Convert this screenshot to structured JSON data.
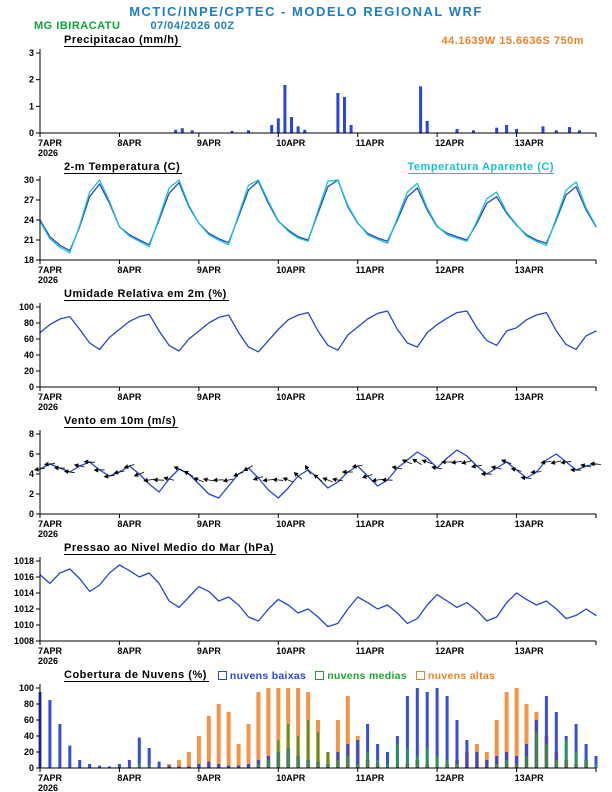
{
  "header": {
    "title": "MCTIC/INPE/CPTEC - MODELO REGIONAL WRF",
    "station": "MG IBIRACATU",
    "run": "07/04/2026 00Z",
    "coords": "44.1639W 15.6636S 750m"
  },
  "colors": {
    "header_blue": "#1d7fc1",
    "green": "#0aa53c",
    "orange": "#ef8228",
    "cyan": "#19c3c9",
    "line_blue": "#2745cf",
    "bar_blue": "#2b46d4",
    "cloud_green": "#1fa62c"
  },
  "x_axis": {
    "t_max": 168,
    "sample_step_hours": 3,
    "ticks": [
      {
        "t": 0,
        "label": "7APR",
        "sub": "2026"
      },
      {
        "t": 24,
        "label": "8APR"
      },
      {
        "t": 48,
        "label": "9APR"
      },
      {
        "t": 72,
        "label": "10APR"
      },
      {
        "t": 96,
        "label": "11APR"
      },
      {
        "t": 120,
        "label": "12APR"
      },
      {
        "t": 144,
        "label": "13APR"
      }
    ]
  },
  "chart_data": [
    {
      "id": "precipitation",
      "type": "bar",
      "title": "Precipitacao (mm/h)",
      "ylim": [
        0,
        3
      ],
      "yticks": [
        0,
        1,
        2,
        3
      ],
      "color": "bar_blue",
      "bars": [
        [
          41,
          0.12
        ],
        [
          43,
          0.18
        ],
        [
          46,
          0.1
        ],
        [
          58,
          0.08
        ],
        [
          63,
          0.1
        ],
        [
          70,
          0.3
        ],
        [
          72,
          0.55
        ],
        [
          74,
          1.8
        ],
        [
          76,
          0.6
        ],
        [
          78,
          0.25
        ],
        [
          80,
          0.12
        ],
        [
          90,
          1.5
        ],
        [
          92,
          1.35
        ],
        [
          94,
          0.3
        ],
        [
          115,
          1.75
        ],
        [
          117,
          0.45
        ],
        [
          126,
          0.15
        ],
        [
          131,
          0.1
        ],
        [
          138,
          0.2
        ],
        [
          141,
          0.3
        ],
        [
          144,
          0.15
        ],
        [
          152,
          0.25
        ],
        [
          156,
          0.1
        ],
        [
          160,
          0.22
        ],
        [
          163,
          0.1
        ]
      ]
    },
    {
      "id": "temperature-2m",
      "type": "line",
      "title": "2-m Temperatura (C)",
      "right_label": "Temperatura Aparente (C)",
      "ylim": [
        18,
        30
      ],
      "yticks": [
        18,
        21,
        24,
        27,
        30
      ],
      "series": [
        {
          "name": "2-m Temperatura (C)",
          "color": "line_blue",
          "values": [
            24,
            21.5,
            20.2,
            19.4,
            23,
            27.5,
            29.4,
            26.5,
            23,
            21.8,
            21,
            20.3,
            24,
            28,
            29.6,
            26,
            23.5,
            22,
            21.2,
            20.6,
            24.5,
            28.5,
            29.8,
            26.5,
            23.8,
            22.5,
            21.5,
            21,
            25,
            29,
            30,
            26,
            23.5,
            22,
            21.3,
            20.8,
            24,
            27.5,
            28.8,
            25.5,
            23,
            22,
            21.5,
            21,
            23.5,
            26.5,
            27.5,
            25,
            23.2,
            21.8,
            21,
            20.5,
            24,
            27.8,
            29,
            25.5,
            23
          ]
        },
        {
          "name": "Temperatura Aparente (C)",
          "color": "cyan",
          "values": [
            23.8,
            21.2,
            19.9,
            19.1,
            23.2,
            28.2,
            30,
            26.8,
            23,
            21.6,
            20.8,
            20,
            24.3,
            28.8,
            30,
            26.2,
            23.5,
            21.8,
            21,
            20.3,
            24.8,
            29.2,
            30,
            26.8,
            23.9,
            22.3,
            21.3,
            20.8,
            25.4,
            29.8,
            30,
            26.2,
            23.6,
            21.8,
            21.1,
            20.5,
            24.3,
            28.2,
            29.5,
            25.8,
            23.1,
            21.8,
            21.3,
            20.8,
            23.8,
            27.2,
            28.2,
            25.2,
            23.3,
            21.6,
            20.8,
            20.2,
            24.3,
            28.5,
            29.7,
            25.8,
            23.1
          ]
        }
      ]
    },
    {
      "id": "relative-humidity",
      "type": "line",
      "title": "Umidade Relativa em 2m (%)",
      "ylim": [
        0,
        100
      ],
      "yticks": [
        0,
        20,
        40,
        60,
        80,
        100
      ],
      "series": [
        {
          "name": "Umidade Relativa",
          "color": "line_blue",
          "values": [
            68,
            78,
            85,
            88,
            72,
            55,
            47,
            62,
            72,
            82,
            88,
            91,
            70,
            52,
            45,
            60,
            70,
            80,
            87,
            90,
            68,
            50,
            44,
            58,
            72,
            84,
            90,
            93,
            70,
            52,
            46,
            65,
            75,
            85,
            92,
            95,
            72,
            55,
            50,
            68,
            78,
            86,
            93,
            95,
            74,
            58,
            52,
            70,
            74,
            84,
            90,
            93,
            70,
            53,
            47,
            64,
            70
          ]
        }
      ]
    },
    {
      "id": "wind-10m",
      "type": "line",
      "title": "Vento em 10m (m/s)",
      "ylim": [
        0,
        8
      ],
      "yticks": [
        0,
        2,
        4,
        6,
        8
      ],
      "series": [
        {
          "name": "Vento em 10m",
          "color": "line_blue",
          "values": [
            4.5,
            5,
            4.6,
            4.2,
            4.8,
            5.2,
            4.4,
            3.8,
            4.2,
            4.8,
            4,
            3,
            2.2,
            3.5,
            4.5,
            4,
            3,
            2,
            1.6,
            2.8,
            4,
            4.6,
            3.6,
            2.4,
            1.6,
            2.6,
            3.8,
            4.4,
            3.6,
            2.6,
            3.2,
            4.2,
            4.8,
            3.8,
            2.8,
            3.4,
            4.6,
            5.4,
            6.2,
            5.6,
            4.6,
            5.6,
            6.4,
            5.8,
            4.8,
            4,
            4.6,
            5.2,
            4.4,
            3.6,
            4.2,
            5.4,
            6,
            5.2,
            4.4,
            4.8,
            5
          ]
        }
      ],
      "barbs": {
        "angles": [
          170,
          175,
          182,
          188,
          192,
          185,
          178,
          172,
          168,
          162,
          158,
          170,
          182,
          194,
          205,
          212,
          202,
          190,
          178,
          168,
          158,
          150,
          162,
          174,
          186,
          202,
          222,
          238,
          220,
          202,
          190,
          180,
          170,
          162,
          172,
          182,
          192,
          202,
          212,
          200,
          190,
          180,
          172,
          166,
          172,
          182,
          192,
          202,
          196,
          186,
          176,
          170,
          166,
          172,
          182,
          192,
          186
        ]
      }
    },
    {
      "id": "mslp",
      "type": "line",
      "title": "Pressao ao Nivel Medio do Mar (hPa)",
      "ylim": [
        1008,
        1018
      ],
      "yticks": [
        1008,
        1010,
        1012,
        1014,
        1016,
        1018
      ],
      "series": [
        {
          "name": "Pressao ao Nivel Medio do Mar",
          "color": "line_blue",
          "values": [
            1016.3,
            1015.2,
            1016.5,
            1017,
            1015.8,
            1014.2,
            1015,
            1016.5,
            1017.5,
            1016.8,
            1016,
            1016.5,
            1015.2,
            1013,
            1012.2,
            1013.5,
            1014.8,
            1014.2,
            1013,
            1013.5,
            1012.5,
            1011,
            1010.5,
            1012,
            1013.2,
            1012.5,
            1011.5,
            1012,
            1011,
            1009.8,
            1010.2,
            1012,
            1013.5,
            1012.8,
            1012,
            1012.5,
            1011.5,
            1010.2,
            1010.8,
            1012.5,
            1013.8,
            1013,
            1012.2,
            1012.8,
            1011.8,
            1010.5,
            1011,
            1012.8,
            1014,
            1013.2,
            1012.5,
            1013,
            1012,
            1010.8,
            1011.2,
            1012,
            1011.2
          ]
        }
      ]
    },
    {
      "id": "cloud-cover",
      "type": "cloud",
      "title": "Cobertura de Nuvens (%)",
      "ylim": [
        0,
        100
      ],
      "yticks": [
        0,
        20,
        40,
        60,
        80,
        100
      ],
      "series": [
        {
          "name": "nuvens baixas",
          "color": "bar_blue",
          "values": [
            95,
            85,
            55,
            28,
            10,
            5,
            3,
            2,
            5,
            10,
            38,
            25,
            8,
            3,
            2,
            2,
            5,
            8,
            5,
            3,
            3,
            5,
            10,
            15,
            20,
            25,
            15,
            10,
            8,
            5,
            20,
            30,
            35,
            55,
            30,
            20,
            40,
            90,
            100,
            95,
            100,
            90,
            60,
            35,
            20,
            10,
            15,
            20,
            15,
            30,
            60,
            90,
            70,
            40,
            55,
            30,
            15
          ]
        },
        {
          "name": "nuvens medias",
          "color": "cloud_green",
          "values": [
            0,
            0,
            0,
            0,
            0,
            0,
            0,
            0,
            0,
            0,
            5,
            3,
            0,
            0,
            0,
            0,
            0,
            0,
            0,
            0,
            0,
            0,
            5,
            10,
            35,
            55,
            40,
            60,
            45,
            20,
            10,
            15,
            5,
            20,
            10,
            5,
            30,
            25,
            15,
            25,
            15,
            10,
            5,
            0,
            0,
            0,
            5,
            10,
            5,
            15,
            45,
            30,
            10,
            35,
            20,
            10,
            5
          ]
        },
        {
          "name": "nuvens altas",
          "color": "orange",
          "values": [
            0,
            0,
            0,
            0,
            0,
            0,
            0,
            0,
            0,
            0,
            0,
            0,
            0,
            5,
            10,
            20,
            40,
            65,
            80,
            70,
            30,
            55,
            95,
            100,
            100,
            100,
            100,
            95,
            60,
            20,
            60,
            90,
            40,
            10,
            5,
            0,
            0,
            5,
            10,
            5,
            0,
            5,
            10,
            20,
            30,
            20,
            60,
            95,
            100,
            80,
            70,
            40,
            20,
            10,
            5,
            10,
            0
          ]
        }
      ]
    }
  ]
}
